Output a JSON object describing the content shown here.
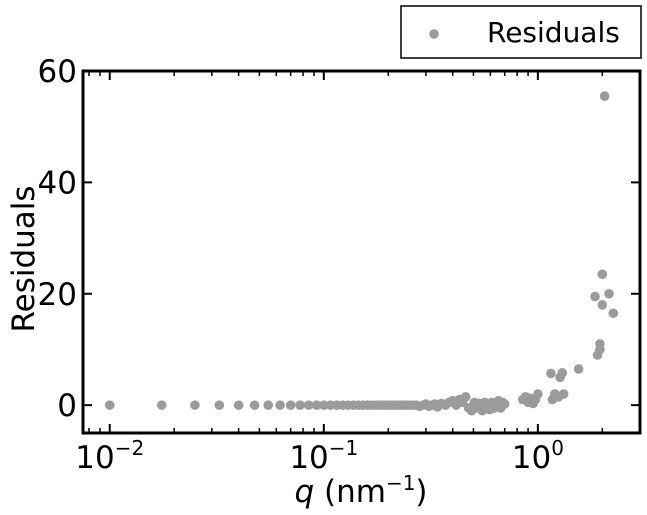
{
  "chart_data": {
    "type": "scatter",
    "xlabel": "q (nm⁻¹)",
    "xlabel_parts": {
      "var": "q",
      "unit": " (nm",
      "sup": "−1",
      "close": ")"
    },
    "ylabel": "Residuals",
    "xscale": "log",
    "xlim": [
      0.0075,
      3.0
    ],
    "ylim": [
      -5,
      60
    ],
    "yticks": [
      0,
      20,
      40,
      60
    ],
    "xticks": [
      {
        "value": 0.01,
        "base": "10",
        "exp": "−2"
      },
      {
        "value": 0.1,
        "base": "10",
        "exp": "−1"
      },
      {
        "value": 1.0,
        "base": "10",
        "exp": "0"
      }
    ],
    "legend": {
      "position": "top-right",
      "entries": [
        "Residuals"
      ]
    },
    "colors": {
      "marker": "#9b9b9b"
    },
    "series": [
      {
        "name": "Residuals",
        "x": [
          0.01,
          0.0175,
          0.025,
          0.0325,
          0.04,
          0.0475,
          0.055,
          0.0625,
          0.07,
          0.0775,
          0.085,
          0.0925,
          0.1,
          0.1075,
          0.115,
          0.1225,
          0.13,
          0.1375,
          0.145,
          0.1525,
          0.16,
          0.1675,
          0.175,
          0.1825,
          0.19,
          0.1975,
          0.205,
          0.2125,
          0.22,
          0.2275,
          0.235,
          0.2425,
          0.25,
          0.26,
          0.27,
          0.28,
          0.29,
          0.3,
          0.31,
          0.32,
          0.33,
          0.34,
          0.355,
          0.37,
          0.385,
          0.4,
          0.415,
          0.43,
          0.445,
          0.46,
          0.475,
          0.49,
          0.505,
          0.52,
          0.535,
          0.55,
          0.565,
          0.58,
          0.595,
          0.61,
          0.625,
          0.64,
          0.655,
          0.67,
          0.685,
          0.7,
          0.85,
          0.875,
          0.9,
          0.925,
          0.95,
          0.975,
          1.0,
          1.15,
          1.2,
          1.25,
          1.3,
          1.17,
          1.22,
          1.27,
          1.32,
          1.55,
          1.85,
          1.9,
          1.95,
          1.95,
          2.0,
          2.0,
          2.05,
          2.15,
          2.25
        ],
        "y": [
          0.0,
          0.0,
          0.0,
          0.0,
          0.0,
          0.0,
          0.0,
          0.0,
          0.0,
          0.0,
          0.0,
          0.0,
          0.0,
          0.0,
          0.0,
          0.0,
          0.0,
          0.0,
          0.0,
          0.0,
          0.0,
          0.0,
          0.0,
          0.0,
          0.0,
          0.0,
          0.0,
          0.0,
          0.0,
          0.0,
          0.0,
          0.0,
          0.0,
          0.0,
          0.0,
          -0.2,
          0.0,
          0.2,
          -0.2,
          0.0,
          0.2,
          -0.3,
          0.3,
          0.0,
          0.5,
          0.8,
          0.0,
          1.0,
          0.5,
          1.5,
          -0.5,
          -1.0,
          0.5,
          -0.5,
          0.3,
          -1.0,
          0.5,
          0.0,
          -0.8,
          0.5,
          -0.5,
          0.0,
          0.8,
          -0.5,
          0.5,
          0.2,
          1.0,
          1.5,
          0.5,
          1.2,
          0.3,
          1.0,
          2.0,
          5.7,
          2.0,
          1.5,
          5.8,
          1.0,
          1.5,
          5.0,
          2.0,
          6.5,
          19.5,
          9.0,
          11.0,
          10.0,
          18.0,
          23.5,
          55.5,
          20.0,
          16.5
        ]
      }
    ]
  }
}
